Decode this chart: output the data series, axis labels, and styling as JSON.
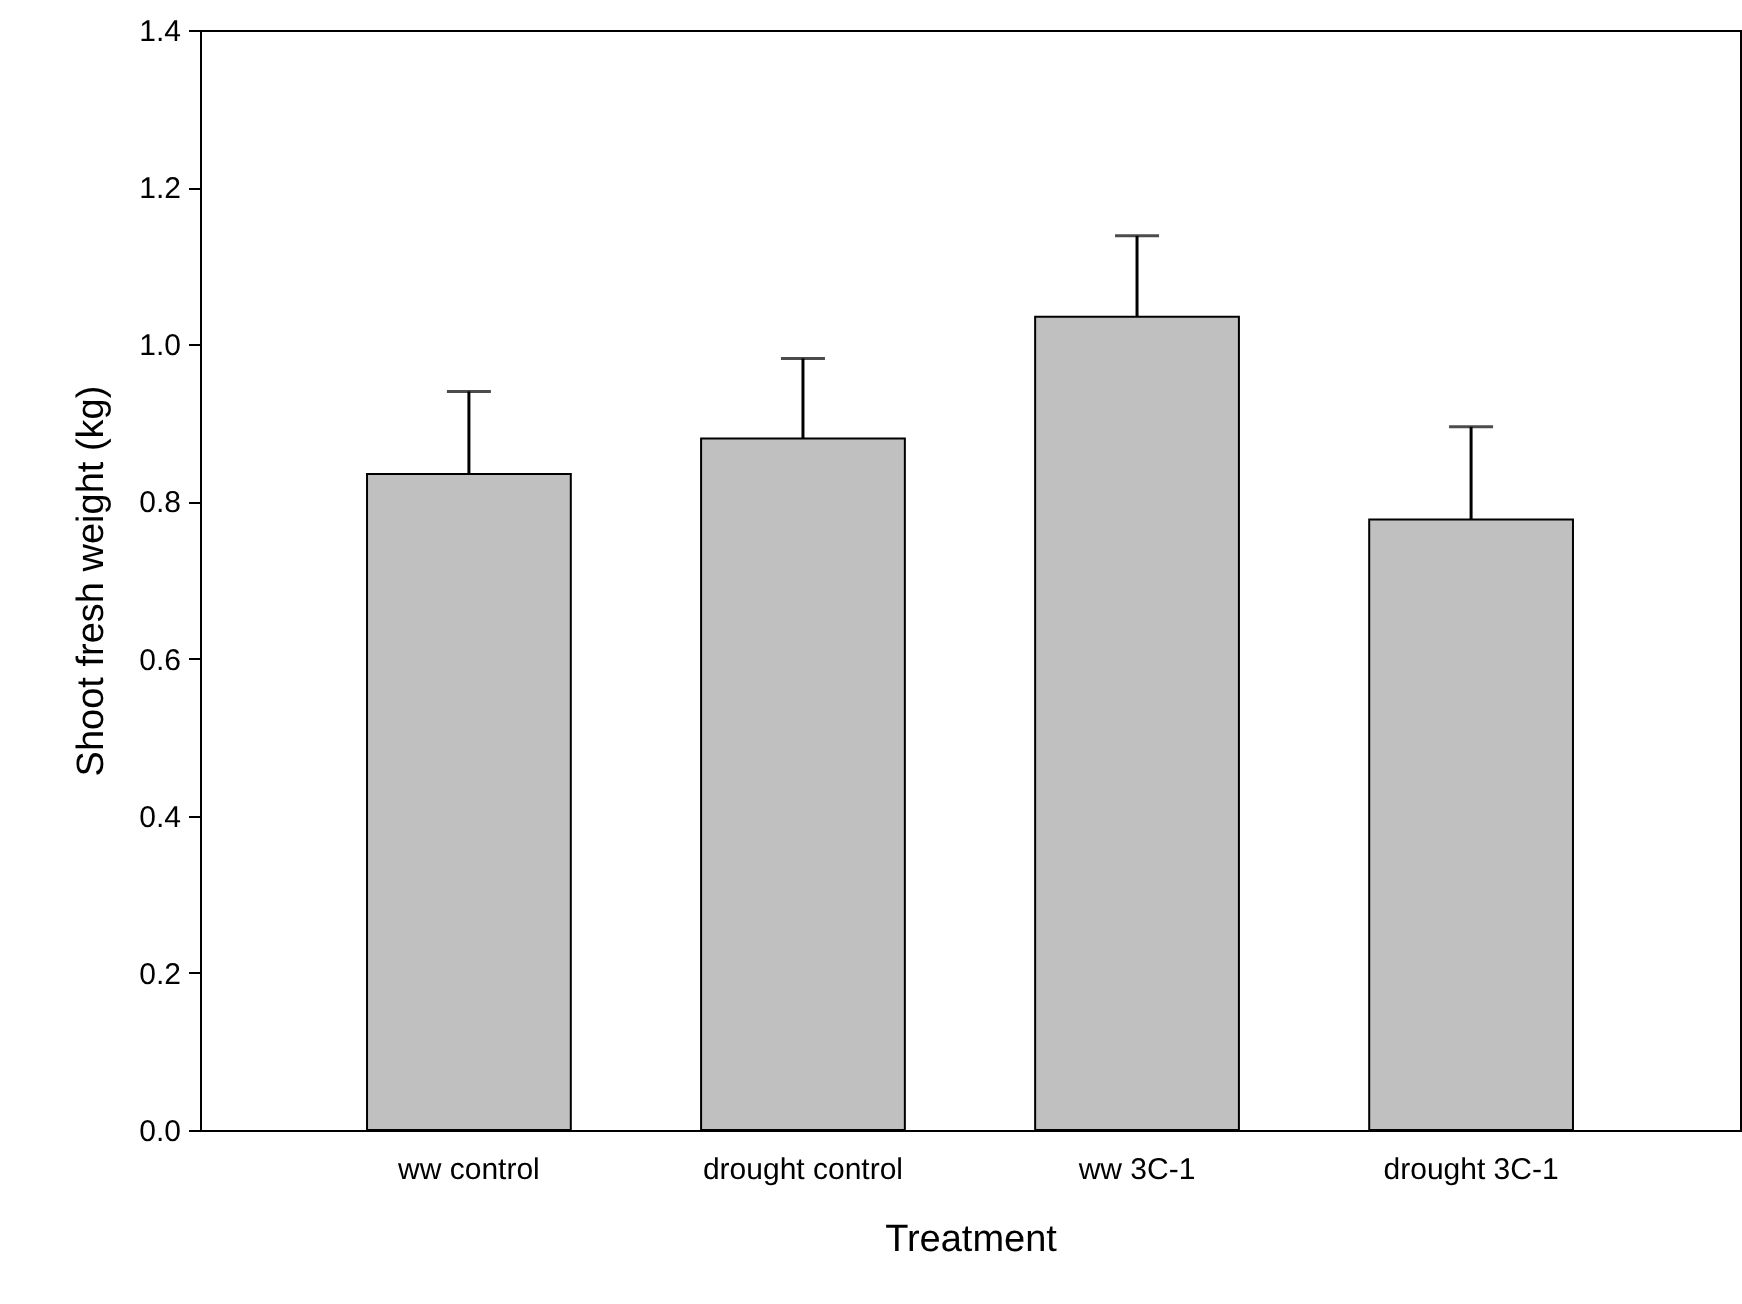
{
  "chart_data": {
    "type": "bar",
    "xlabel": "Treatment",
    "ylabel": "Shoot fresh weight (kg)",
    "categories": [
      "ww control",
      "drought control",
      "ww 3C-1",
      "drought 3C-1"
    ],
    "values": [
      0.835,
      0.88,
      1.035,
      0.777
    ],
    "errors": [
      [
        0.835,
        0.94
      ],
      [
        0.88,
        0.982
      ],
      [
        1.035,
        1.138
      ],
      [
        0.777,
        0.895
      ]
    ],
    "color": "#c0c0c0",
    "ylim": [
      0,
      1.4
    ],
    "yticks": [
      {
        "value": 0,
        "label": "0.0"
      },
      0.2,
      0.4,
      0.6,
      0.8,
      {
        "value": 1,
        "label": "1.0"
      },
      1.2,
      1.4
    ],
    "grid": false
  }
}
